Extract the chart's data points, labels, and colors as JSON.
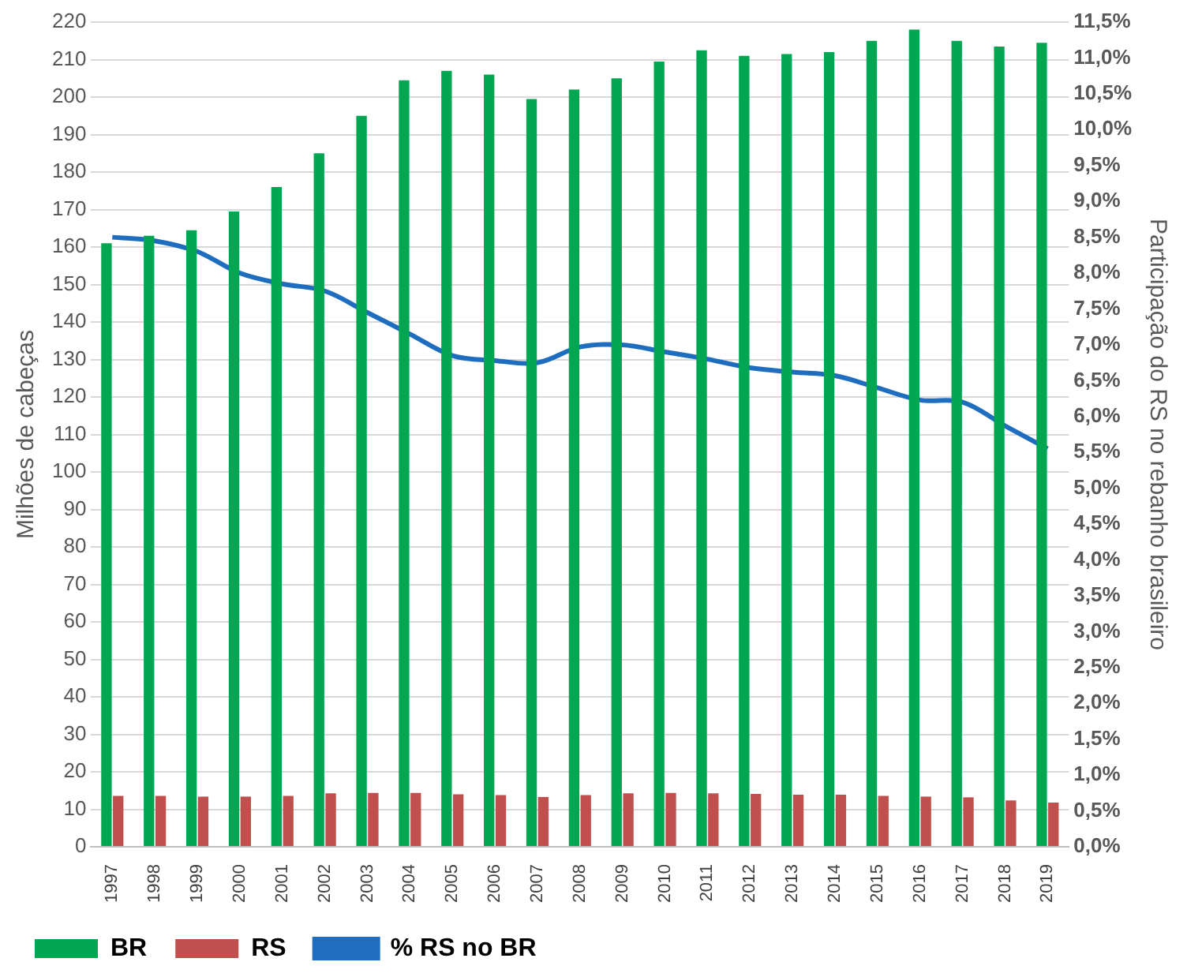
{
  "chart_data": {
    "type": "bar",
    "ylabel": "Milhões de cabeças",
    "y2label": "Participação do RS no rebanho brasileiro",
    "categories": [
      "1997",
      "1998",
      "1999",
      "2000",
      "2001",
      "2002",
      "2003",
      "2004",
      "2005",
      "2006",
      "2007",
      "2008",
      "2009",
      "2010",
      "2011",
      "2012",
      "2013",
      "2014",
      "2015",
      "2016",
      "2017",
      "2018",
      "2019"
    ],
    "series": [
      {
        "name": "BR",
        "color": "#00a651",
        "values": [
          161,
          163,
          164.5,
          169.5,
          176,
          185,
          195,
          204.5,
          207,
          206,
          199.5,
          202,
          205,
          209.5,
          212.5,
          211,
          211.5,
          212,
          215,
          218,
          215,
          213.5,
          214.5
        ]
      },
      {
        "name": "RS",
        "color": "#c0504d",
        "values": [
          13.6,
          13.6,
          13.4,
          13.4,
          13.6,
          14.3,
          14.4,
          14.4,
          14,
          13.8,
          13.3,
          13.8,
          14.3,
          14.4,
          14.3,
          14.1,
          13.9,
          13.9,
          13.6,
          13.4,
          13.2,
          12.4,
          11.8
        ]
      },
      {
        "name": "% RS no BR",
        "type": "line",
        "axis": "y2",
        "color": "#1f6dbf",
        "values": [
          8.5,
          8.45,
          8.3,
          8.0,
          7.85,
          7.75,
          7.45,
          7.15,
          6.85,
          6.78,
          6.75,
          6.97,
          7.0,
          6.9,
          6.8,
          6.68,
          6.62,
          6.57,
          6.4,
          6.23,
          6.2,
          5.87,
          5.55
        ]
      }
    ],
    "ylim": [
      0,
      220
    ],
    "yticks": [
      0,
      10,
      20,
      30,
      40,
      50,
      60,
      70,
      80,
      90,
      100,
      110,
      120,
      130,
      140,
      150,
      160,
      170,
      180,
      190,
      200,
      210,
      220
    ],
    "y2lim": [
      0,
      11.5
    ],
    "y2ticks": [
      {
        "value": 0,
        "label": "0,0%"
      },
      {
        "value": 0.5,
        "label": "0,5%"
      },
      {
        "value": 1,
        "label": "1,0%"
      },
      {
        "value": 1.5,
        "label": "1,5%"
      },
      {
        "value": 2,
        "label": "2,0%"
      },
      {
        "value": 2.5,
        "label": "2,5%"
      },
      {
        "value": 3,
        "label": "3,0%"
      },
      {
        "value": 3.5,
        "label": "3,5%"
      },
      {
        "value": 4,
        "label": "4,0%"
      },
      {
        "value": 4.5,
        "label": "4,5%"
      },
      {
        "value": 5,
        "label": "5,0%"
      },
      {
        "value": 5.5,
        "label": "5,5%"
      },
      {
        "value": 6,
        "label": "6,0%"
      },
      {
        "value": 6.5,
        "label": "6,5%"
      },
      {
        "value": 7,
        "label": "7,0%"
      },
      {
        "value": 7.5,
        "label": "7,5%"
      },
      {
        "value": 8,
        "label": "8,0%"
      },
      {
        "value": 8.5,
        "label": "8,5%"
      },
      {
        "value": 9,
        "label": "9,0%"
      },
      {
        "value": 9.5,
        "label": "9,5%"
      },
      {
        "value": 10,
        "label": "10,0%"
      },
      {
        "value": 10.5,
        "label": "10,5%"
      },
      {
        "value": 11,
        "label": "11,0%"
      },
      {
        "value": 11.5,
        "label": "11,5%"
      }
    ],
    "grid": "y",
    "legend": "bottom left",
    "marker": "none",
    "line_style": "solid"
  }
}
